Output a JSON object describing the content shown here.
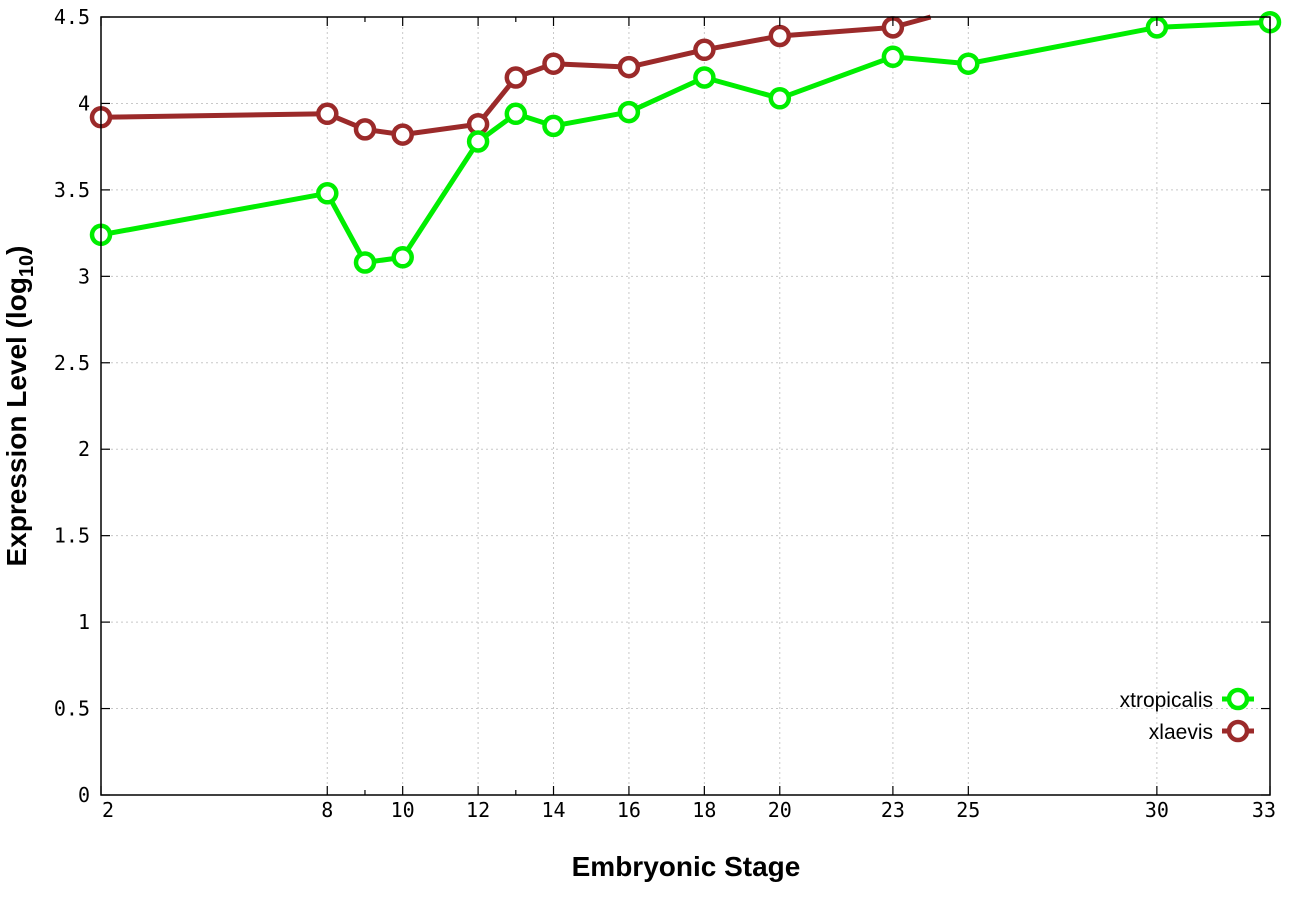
{
  "chart_data": {
    "type": "line",
    "title": "",
    "xlabel": "Embryonic Stage",
    "ylabel": "Expression Level (log10)",
    "ylabel_main": "Expression Level (log",
    "ylabel_sub": "10",
    "ylabel_close": ")",
    "xlim": [
      2,
      33
    ],
    "ylim": [
      0,
      4.5
    ],
    "x_ticks": [
      2,
      8,
      10,
      12,
      14,
      16,
      18,
      20,
      23,
      25,
      30,
      33
    ],
    "x_tick_labels": [
      "2",
      "8",
      "10",
      "12",
      "14",
      "16",
      "18",
      "20",
      "23",
      "25",
      "30",
      "33"
    ],
    "x_minor_ticks": [
      9,
      13
    ],
    "y_ticks": [
      0,
      0.5,
      1,
      1.5,
      2,
      2.5,
      3,
      3.5,
      4,
      4.5
    ],
    "y_tick_labels": [
      "0",
      "0.5",
      "1",
      "1.5",
      "2",
      "2.5",
      "3",
      "3.5",
      "4",
      "4.5"
    ],
    "grid": true,
    "legend_position": "bottom-right",
    "series": [
      {
        "name": "xtropicalis",
        "color": "#00ee00",
        "x": [
          2,
          8,
          9,
          10,
          12,
          13,
          14,
          16,
          18,
          20,
          23,
          25,
          30,
          33
        ],
        "y": [
          3.24,
          3.48,
          3.08,
          3.11,
          3.78,
          3.94,
          3.87,
          3.95,
          4.15,
          4.03,
          4.27,
          4.23,
          4.44,
          4.47
        ]
      },
      {
        "name": "xlaevis",
        "color": "#9b2a2a",
        "x": [
          2,
          8,
          9,
          10,
          12,
          13,
          14,
          16,
          18,
          20,
          23
        ],
        "y": [
          3.92,
          3.94,
          3.85,
          3.82,
          3.88,
          4.15,
          4.23,
          4.21,
          4.31,
          4.39,
          4.44
        ],
        "line_extends_to": {
          "x": 24,
          "y": 4.5
        }
      }
    ]
  }
}
